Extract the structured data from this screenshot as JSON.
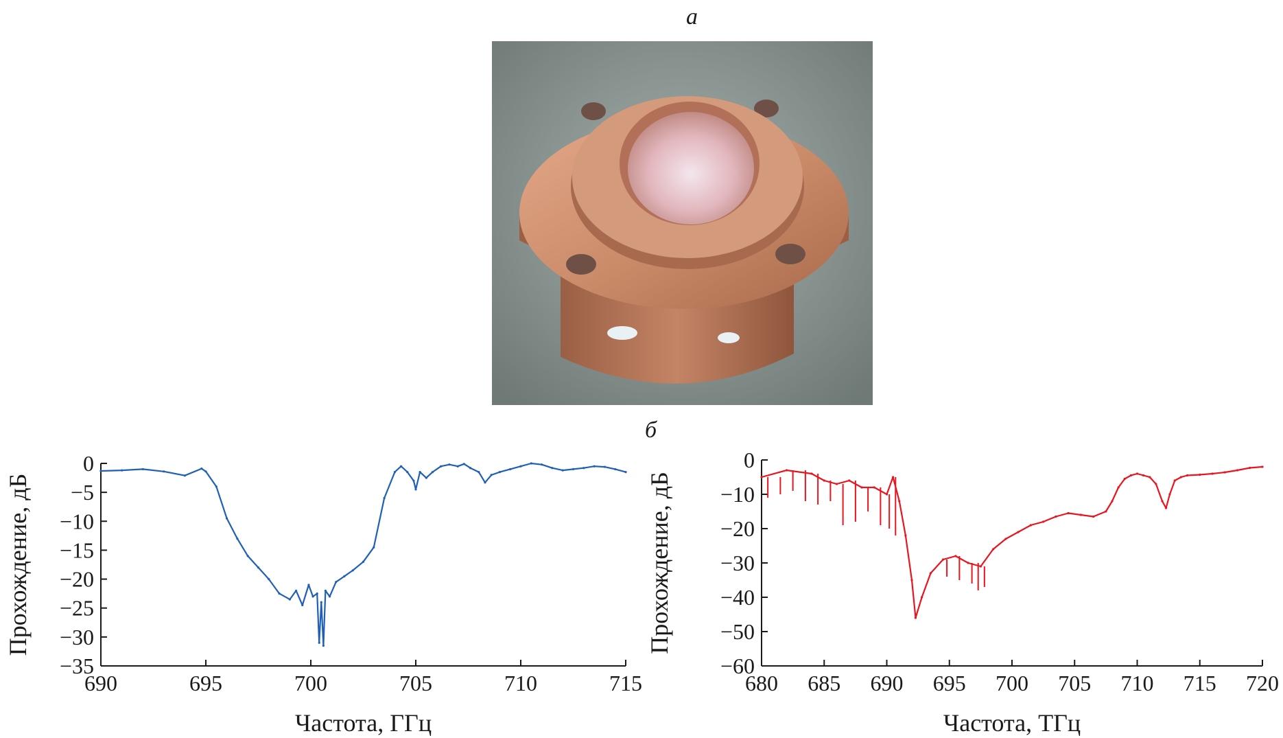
{
  "panels": {
    "a": "a",
    "b": "б"
  },
  "photo": {
    "description": "copper flange cavity photo",
    "colors": {
      "background": "#8b9592",
      "copper": "#c98a68"
    }
  },
  "chart_data": [
    {
      "type": "line",
      "xlabel": "Частота, ГГц",
      "ylabel": "Прохождение, дБ",
      "xlim": [
        690,
        715
      ],
      "ylim": [
        -35,
        0
      ],
      "xticks": [
        690,
        695,
        700,
        705,
        710,
        715
      ],
      "yticks": [
        0,
        -5,
        -10,
        -15,
        -20,
        -25,
        -30,
        -35
      ],
      "grid": false,
      "series": [
        {
          "color": "#1f5fb5",
          "x": [
            690,
            691,
            692,
            693,
            694,
            694.8,
            695,
            695.5,
            696,
            696.5,
            697,
            697.5,
            698,
            698.5,
            699,
            699.3,
            699.6,
            699.9,
            700.1,
            700.3,
            700.4,
            700.5,
            700.6,
            700.7,
            700.9,
            701.2,
            701.6,
            702,
            702.5,
            703,
            703.5,
            704,
            704.3,
            704.6,
            704.9,
            705,
            705.2,
            705.5,
            705.8,
            706.2,
            706.6,
            707,
            707.3,
            707.6,
            708,
            708.3,
            708.6,
            709,
            709.5,
            710,
            710.5,
            711,
            711.5,
            712,
            712.5,
            713,
            713.5,
            714,
            714.5,
            715
          ],
          "y": [
            -1.3,
            -1.2,
            -1.0,
            -1.4,
            -2.1,
            -0.9,
            -1.4,
            -4.0,
            -9.5,
            -13.0,
            -16.0,
            -18.0,
            -20.0,
            -22.5,
            -23.5,
            -22.0,
            -24.5,
            -21.0,
            -23.0,
            -22.5,
            -31.0,
            -24.0,
            -31.5,
            -22.0,
            -23.0,
            -20.5,
            -19.5,
            -18.5,
            -17.0,
            -14.5,
            -6.0,
            -1.5,
            -0.5,
            -1.5,
            -3.0,
            -4.5,
            -1.5,
            -2.5,
            -1.5,
            -0.5,
            -0.2,
            -0.5,
            -0.1,
            -0.8,
            -1.5,
            -3.3,
            -2.0,
            -1.5,
            -1.0,
            -0.5,
            0.0,
            -0.2,
            -0.8,
            -1.2,
            -1.0,
            -0.8,
            -0.5,
            -0.6,
            -1.0,
            -1.5
          ]
        }
      ]
    },
    {
      "type": "line",
      "xlabel": "Частота, ТГц",
      "ylabel": "Прохождение, дБ",
      "xlim": [
        680,
        720
      ],
      "ylim": [
        -60,
        0
      ],
      "xticks": [
        680,
        685,
        690,
        695,
        700,
        705,
        710,
        715,
        720
      ],
      "yticks": [
        0,
        -10,
        -20,
        -30,
        -40,
        -50,
        -60
      ],
      "grid": false,
      "series": [
        {
          "color": "#e8151f",
          "x": [
            680,
            682,
            684,
            685,
            686,
            687,
            688,
            689,
            690,
            690.5,
            691,
            691.5,
            692,
            692.3,
            692.8,
            693.5,
            694.5,
            695.5,
            696.5,
            697.5,
            698.5,
            699.5,
            700.5,
            701.5,
            702.5,
            703.5,
            704.5,
            705.5,
            706.5,
            707.5,
            708,
            708.5,
            709,
            709.5,
            710,
            710.5,
            711,
            711.5,
            712,
            712.3,
            712.6,
            713,
            713.5,
            714,
            715,
            716,
            717,
            718,
            719,
            720
          ],
          "y": [
            -5,
            -3,
            -4,
            -6,
            -7,
            -6,
            -8,
            -8,
            -10,
            -5,
            -12,
            -22,
            -35,
            -46,
            -40,
            -33,
            -29,
            -28,
            -30,
            -31,
            -26,
            -23,
            -21,
            -19,
            -18,
            -16.5,
            -15.5,
            -16,
            -16.5,
            -15,
            -12,
            -8,
            -5.5,
            -4.5,
            -4,
            -4.5,
            -5,
            -7,
            -12,
            -14,
            -10,
            -6,
            -5,
            -4.5,
            -4.3,
            -4,
            -3.6,
            -3,
            -2.3,
            -2
          ]
        },
        {
          "color": "#e8151f",
          "role": "noise-envelope",
          "x": [
            680.5,
            681.5,
            682.5,
            683.5,
            684.5,
            685.5,
            686.5,
            687.5,
            688.5,
            689.5,
            690.2,
            690.7,
            693.8,
            694.8,
            695.8,
            696.8,
            697.3,
            697.8
          ],
          "y": [
            -11,
            -10,
            -9,
            -12,
            -13,
            -12,
            -19,
            -18,
            -15,
            -19,
            -20,
            -22,
            -33,
            -34,
            -35,
            -36,
            -38,
            -37
          ]
        }
      ]
    }
  ]
}
